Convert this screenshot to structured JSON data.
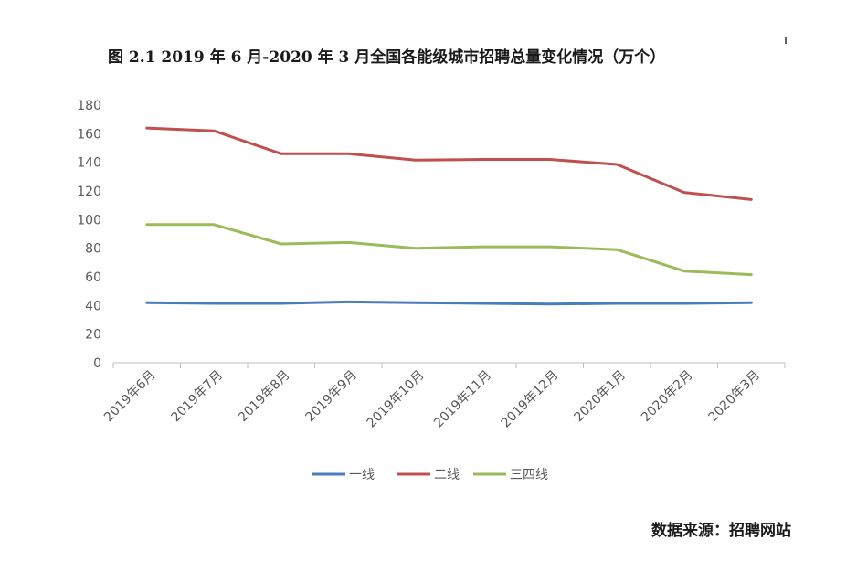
{
  "title": "图 2.1   2019 年 6 月-2020 年 3 月全国各能级城市招聘总量变化情况（万个）",
  "source": "数据来源：招聘网站",
  "chart_data": {
    "type": "line",
    "title": "图 2.1   2019 年 6 月-2020 年 3 月全国各能级城市招聘总量变化情况（万个）",
    "categories": [
      "2019年6月",
      "2019年7月",
      "2019年8月",
      "2019年9月",
      "2019年10月",
      "2019年11月",
      "2019年12月",
      "2020年1月",
      "2020年2月",
      "2020年3月"
    ],
    "ylim": [
      0,
      180
    ],
    "yticks": [
      0,
      20,
      40,
      60,
      80,
      100,
      120,
      140,
      160,
      180
    ],
    "grid": false,
    "legend": "bottom",
    "series": [
      {
        "name": "一线",
        "color": "#4a7ebb",
        "values": [
          42,
          41.5,
          41.5,
          42.5,
          42,
          41.5,
          41,
          41.5,
          41.5,
          42
        ]
      },
      {
        "name": "二线",
        "color": "#c0504d",
        "values": [
          164,
          162,
          146,
          146,
          141.5,
          142,
          142,
          138.5,
          119,
          114
        ]
      },
      {
        "name": "三四线",
        "color": "#9bbb59",
        "values": [
          96.5,
          96.5,
          83,
          84,
          80,
          81,
          81,
          79,
          64,
          61.5
        ]
      }
    ]
  }
}
